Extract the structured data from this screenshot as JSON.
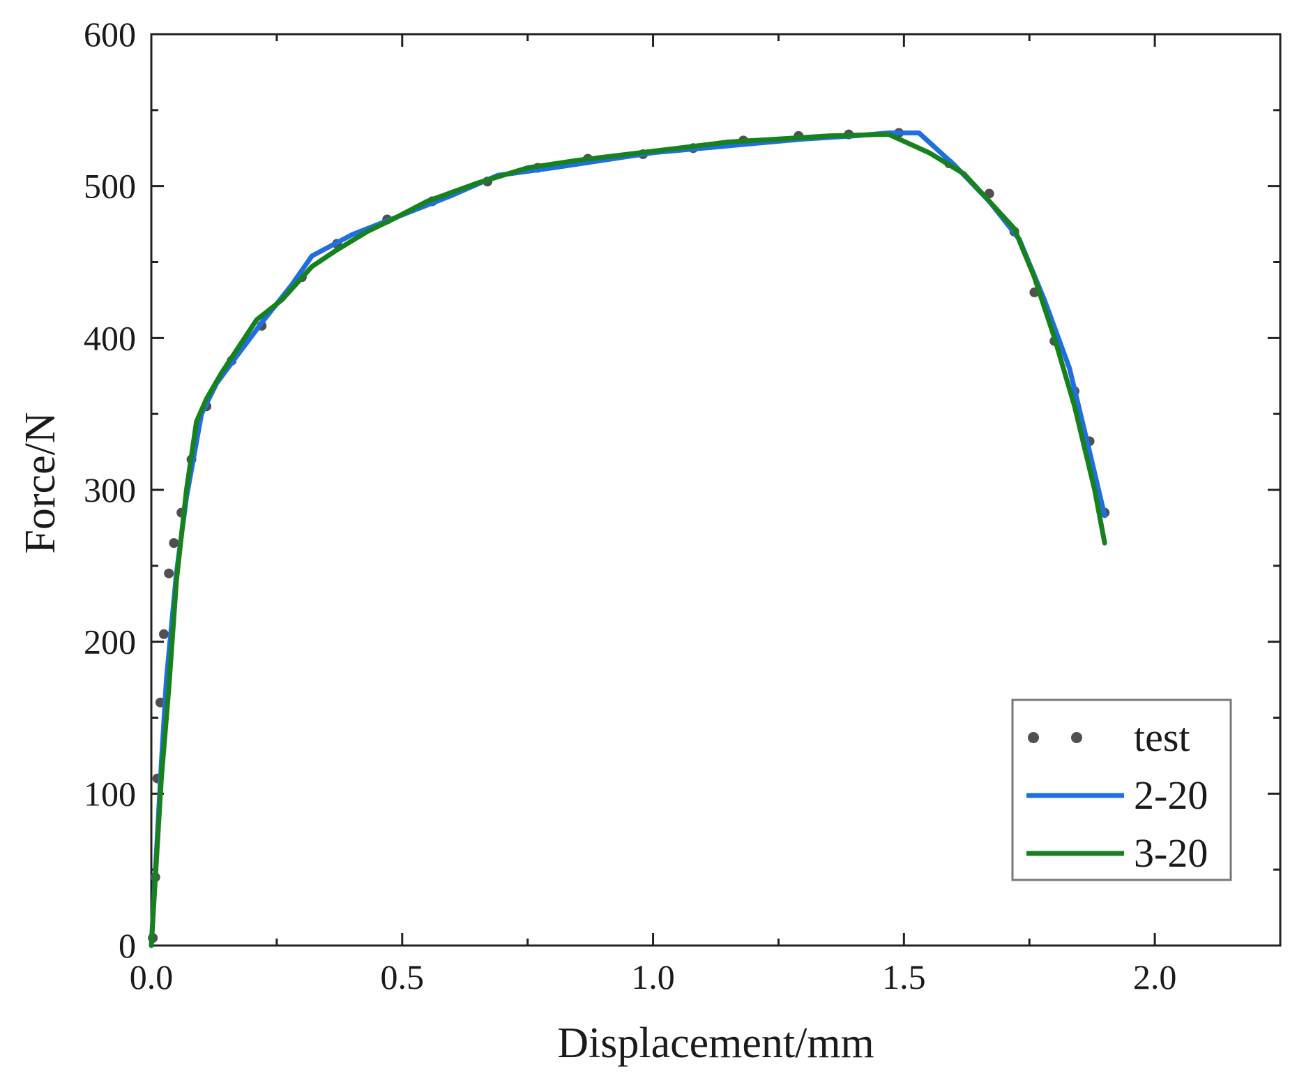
{
  "chart_data": {
    "type": "line",
    "title": "",
    "xlabel": "Displacement/mm",
    "ylabel": "Force/N",
    "xlim": [
      0,
      2.25
    ],
    "ylim": [
      0,
      600
    ],
    "x_ticks": [
      0.0,
      0.5,
      1.0,
      1.5,
      2.0
    ],
    "x_tick_labels": [
      "0.0",
      "0.5",
      "1.0",
      "1.5",
      "2.0"
    ],
    "y_ticks": [
      0,
      100,
      200,
      300,
      400,
      500,
      600
    ],
    "y_tick_labels": [
      "0",
      "100",
      "200",
      "300",
      "400",
      "500",
      "600"
    ],
    "grid": false,
    "legend_position": "bottom-right",
    "series": [
      {
        "name": "test",
        "style": "dotted",
        "color": "#505050",
        "x": [
          0.003,
          0.008,
          0.012,
          0.018,
          0.025,
          0.035,
          0.045,
          0.06,
          0.08,
          0.11,
          0.16,
          0.22,
          0.3,
          0.37,
          0.47,
          0.56,
          0.67,
          0.77,
          0.87,
          0.98,
          1.08,
          1.18,
          1.29,
          1.39,
          1.49,
          1.59,
          1.67,
          1.72,
          1.76,
          1.8,
          1.84,
          1.87,
          1.9
        ],
        "y": [
          5,
          45,
          110,
          160,
          205,
          245,
          265,
          285,
          320,
          355,
          385,
          408,
          440,
          462,
          478,
          490,
          503,
          512,
          518,
          521,
          525,
          530,
          533,
          534,
          535,
          515,
          495,
          470,
          430,
          398,
          365,
          332,
          285
        ]
      },
      {
        "name": "2-20",
        "style": "solid",
        "color": "#1f6fe0",
        "x": [
          0.0,
          0.01,
          0.02,
          0.03,
          0.05,
          0.07,
          0.1,
          0.13,
          0.17,
          0.22,
          0.28,
          0.32,
          0.4,
          0.5,
          0.6,
          0.69,
          0.8,
          0.9,
          1.0,
          1.1,
          1.2,
          1.3,
          1.4,
          1.47,
          1.53,
          1.6,
          1.67,
          1.73,
          1.78,
          1.83,
          1.87,
          1.9
        ],
        "y": [
          0,
          60,
          120,
          175,
          245,
          295,
          350,
          370,
          388,
          410,
          435,
          454,
          468,
          481,
          494,
          507,
          512,
          517,
          522,
          525,
          528,
          531,
          533,
          535,
          535,
          514,
          490,
          465,
          425,
          380,
          325,
          283
        ]
      },
      {
        "name": "3-20",
        "style": "solid",
        "color": "#17821d",
        "x": [
          0.0,
          0.01,
          0.02,
          0.035,
          0.05,
          0.07,
          0.09,
          0.11,
          0.14,
          0.17,
          0.21,
          0.26,
          0.29,
          0.32,
          0.37,
          0.43,
          0.48,
          0.55,
          0.65,
          0.75,
          0.85,
          0.95,
          1.05,
          1.15,
          1.25,
          1.35,
          1.45,
          1.47,
          1.55,
          1.62,
          1.67,
          1.72,
          1.76,
          1.8,
          1.84,
          1.88,
          1.9
        ],
        "y": [
          0,
          55,
          110,
          170,
          240,
          300,
          345,
          360,
          377,
          392,
          412,
          425,
          436,
          447,
          458,
          470,
          478,
          490,
          502,
          512,
          517,
          521,
          525,
          529,
          531,
          533,
          534,
          534,
          522,
          508,
          490,
          472,
          440,
          400,
          355,
          300,
          265
        ]
      }
    ]
  }
}
